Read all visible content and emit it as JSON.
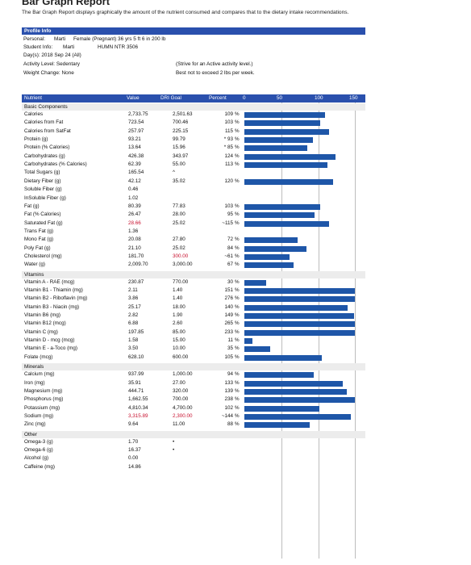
{
  "report": {
    "title": "Bar Graph Report",
    "intro": "The Bar Graph Report displays graphically the amount of the nutrient consumed and compares that to the dietary intake recommendations."
  },
  "profile": {
    "header": "Profile Info",
    "personal_label": "Personal:",
    "personal_name": "Marti",
    "personal_details": "Female (Pregnant)   36 yrs   5 ft 6 in   200 lb",
    "student_label": "Student Info:",
    "student_name": "Marti",
    "student_course": "HUMN NTR 3506",
    "days": "Day(s):  2018 Sep 24 (All)",
    "activity": "Activity Level: Sedentary",
    "activity_note": "(Strive for an Active activity level.)",
    "weight": "Weight Change: None",
    "weight_note": "Best not to exceed 2 lbs per week."
  },
  "table": {
    "col_nutrient": "Nutrient",
    "col_value": "Value",
    "col_goal": "DRI Goal",
    "col_percent": "Percent",
    "scale_ticks": [
      "0",
      "50",
      "100",
      "150"
    ],
    "bar_color": "#1e56a8",
    "header_color": "#2a50ad",
    "warning_color": "#c8102e"
  },
  "groups": [
    {
      "label": "Basic Components",
      "rows": [
        {
          "name": "Calories",
          "value": "2,733.75",
          "goal": "2,501.63",
          "pct": "109",
          "unit": "%",
          "bar": 109
        },
        {
          "name": "Calories from Fat",
          "value": "723.54",
          "goal": "700.46",
          "pct": "103",
          "unit": "%",
          "bar": 103
        },
        {
          "name": "Calories from SatFat",
          "value": "257.97",
          "goal": "225.15",
          "pct": "115",
          "unit": "%",
          "bar": 115
        },
        {
          "name": "Protein (g)",
          "value": "93.21",
          "goal": "99.79",
          "pct": "* 93",
          "unit": "%",
          "bar": 93
        },
        {
          "name": "Protein (% Calories)",
          "value": "13.64",
          "goal": "15.96",
          "pct": "* 85",
          "unit": "%",
          "bar": 85
        },
        {
          "name": "Carbohydrates (g)",
          "value": "426.38",
          "goal": "343.97",
          "pct": "124",
          "unit": "%",
          "bar": 124
        },
        {
          "name": "Carbohydrates (% Calories)",
          "value": "62.39",
          "goal": "55.00",
          "pct": "113",
          "unit": "%",
          "bar": 113
        },
        {
          "name": "Total Sugars (g)",
          "value": "165.54",
          "goal": "^",
          "pct": "",
          "unit": "",
          "bar": 0
        },
        {
          "name": "Dietary Fiber (g)",
          "value": "42.12",
          "goal": "35.02",
          "pct": "120",
          "unit": "%",
          "bar": 120
        },
        {
          "name": "Soluble Fiber (g)",
          "value": "0.46",
          "goal": "",
          "pct": "",
          "unit": "",
          "bar": 0
        },
        {
          "name": "InSoluble Fiber (g)",
          "value": "1.02",
          "goal": "",
          "pct": "",
          "unit": "",
          "bar": 0
        },
        {
          "name": "Fat (g)",
          "value": "80.39",
          "goal": "77.83",
          "pct": "103",
          "unit": "%",
          "bar": 103
        },
        {
          "name": "Fat (% Calories)",
          "value": "26.47",
          "goal": "28.00",
          "pct": "95",
          "unit": "%",
          "bar": 95
        },
        {
          "name": "Saturated Fat (g)",
          "value": "28.66",
          "goal": "25.02",
          "pct": "~115",
          "unit": "%",
          "bar": 115,
          "warn": true
        },
        {
          "name": "Trans Fat (g)",
          "value": "1.36",
          "goal": "",
          "pct": "",
          "unit": "",
          "bar": 0
        },
        {
          "name": "Mono Fat (g)",
          "value": "20.08",
          "goal": "27.80",
          "pct": "72",
          "unit": "%",
          "bar": 72
        },
        {
          "name": "Poly Fat (g)",
          "value": "21.10",
          "goal": "25.02",
          "pct": "84",
          "unit": "%",
          "bar": 84
        },
        {
          "name": "Cholesterol (mg)",
          "value": "181.70",
          "goal": "300.00",
          "pct": "~61",
          "unit": "%",
          "bar": 61,
          "warn_goal": true
        },
        {
          "name": "Water (g)",
          "value": "2,009.70",
          "goal": "3,000.00",
          "pct": "67",
          "unit": "%",
          "bar": 67
        }
      ]
    },
    {
      "label": "Vitamins",
      "rows": [
        {
          "name": "Vitamin A - RAE (mcg)",
          "value": "230.87",
          "goal": "770.00",
          "pct": "30",
          "unit": "%",
          "bar": 30
        },
        {
          "name": "Vitamin B1 - Thiamin (mg)",
          "value": "2.11",
          "goal": "1.40",
          "pct": "151",
          "unit": "%",
          "bar": 151
        },
        {
          "name": "Vitamin B2 - Riboflavin (mg)",
          "value": "3.86",
          "goal": "1.40",
          "pct": "276",
          "unit": "%",
          "bar": 276
        },
        {
          "name": "Vitamin B3 - Niacin (mg)",
          "value": "25.17",
          "goal": "18.00",
          "pct": "140",
          "unit": "%",
          "bar": 140
        },
        {
          "name": "Vitamin B6 (mg)",
          "value": "2.82",
          "goal": "1.90",
          "pct": "149",
          "unit": "%",
          "bar": 149
        },
        {
          "name": "Vitamin B12 (mcg)",
          "value": "6.88",
          "goal": "2.60",
          "pct": "265",
          "unit": "%",
          "bar": 265
        },
        {
          "name": "Vitamin C (mg)",
          "value": "197.85",
          "goal": "85.00",
          "pct": "233",
          "unit": "%",
          "bar": 233
        },
        {
          "name": "Vitamin D - mcg (mcg)",
          "value": "1.58",
          "goal": "15.00",
          "pct": "11",
          "unit": "%",
          "bar": 11
        },
        {
          "name": "Vitamin E - a-Toco (mg)",
          "value": "3.50",
          "goal": "10.00",
          "pct": "35",
          "unit": "%",
          "bar": 35
        },
        {
          "name": "Folate (mcg)",
          "value": "628.10",
          "goal": "600.00",
          "pct": "105",
          "unit": "%",
          "bar": 105
        }
      ]
    },
    {
      "label": "Minerals",
      "rows": [
        {
          "name": "Calcium (mg)",
          "value": "937.99",
          "goal": "1,000.00",
          "pct": "94",
          "unit": "%",
          "bar": 94
        },
        {
          "name": "Iron (mg)",
          "value": "35.91",
          "goal": "27.00",
          "pct": "133",
          "unit": "%",
          "bar": 133
        },
        {
          "name": "Magnesium (mg)",
          "value": "444.71",
          "goal": "320.00",
          "pct": "139",
          "unit": "%",
          "bar": 139
        },
        {
          "name": "Phosphorus (mg)",
          "value": "1,662.55",
          "goal": "700.00",
          "pct": "238",
          "unit": "%",
          "bar": 238
        },
        {
          "name": "Potassium (mg)",
          "value": "4,810.34",
          "goal": "4,700.00",
          "pct": "102",
          "unit": "%",
          "bar": 102
        },
        {
          "name": "Sodium (mg)",
          "value": "3,315.89",
          "goal": "2,300.00",
          "pct": "~144",
          "unit": "%",
          "bar": 144,
          "warn": true,
          "warn_goal": true
        },
        {
          "name": "Zinc (mg)",
          "value": "9.64",
          "goal": "11.00",
          "pct": "88",
          "unit": "%",
          "bar": 88
        }
      ]
    },
    {
      "label": "Other",
      "rows": [
        {
          "name": "Omega-3 (g)",
          "value": "1.70",
          "goal": "•",
          "pct": "",
          "unit": "",
          "bar": 0
        },
        {
          "name": "Omega-6 (g)",
          "value": "16.37",
          "goal": "•",
          "pct": "",
          "unit": "",
          "bar": 0
        },
        {
          "name": "Alcohol (g)",
          "value": "0.00",
          "goal": "",
          "pct": "",
          "unit": "",
          "bar": 0
        },
        {
          "name": "Caffeine (mg)",
          "value": "14.86",
          "goal": "",
          "pct": "",
          "unit": "",
          "bar": 0
        }
      ]
    }
  ]
}
